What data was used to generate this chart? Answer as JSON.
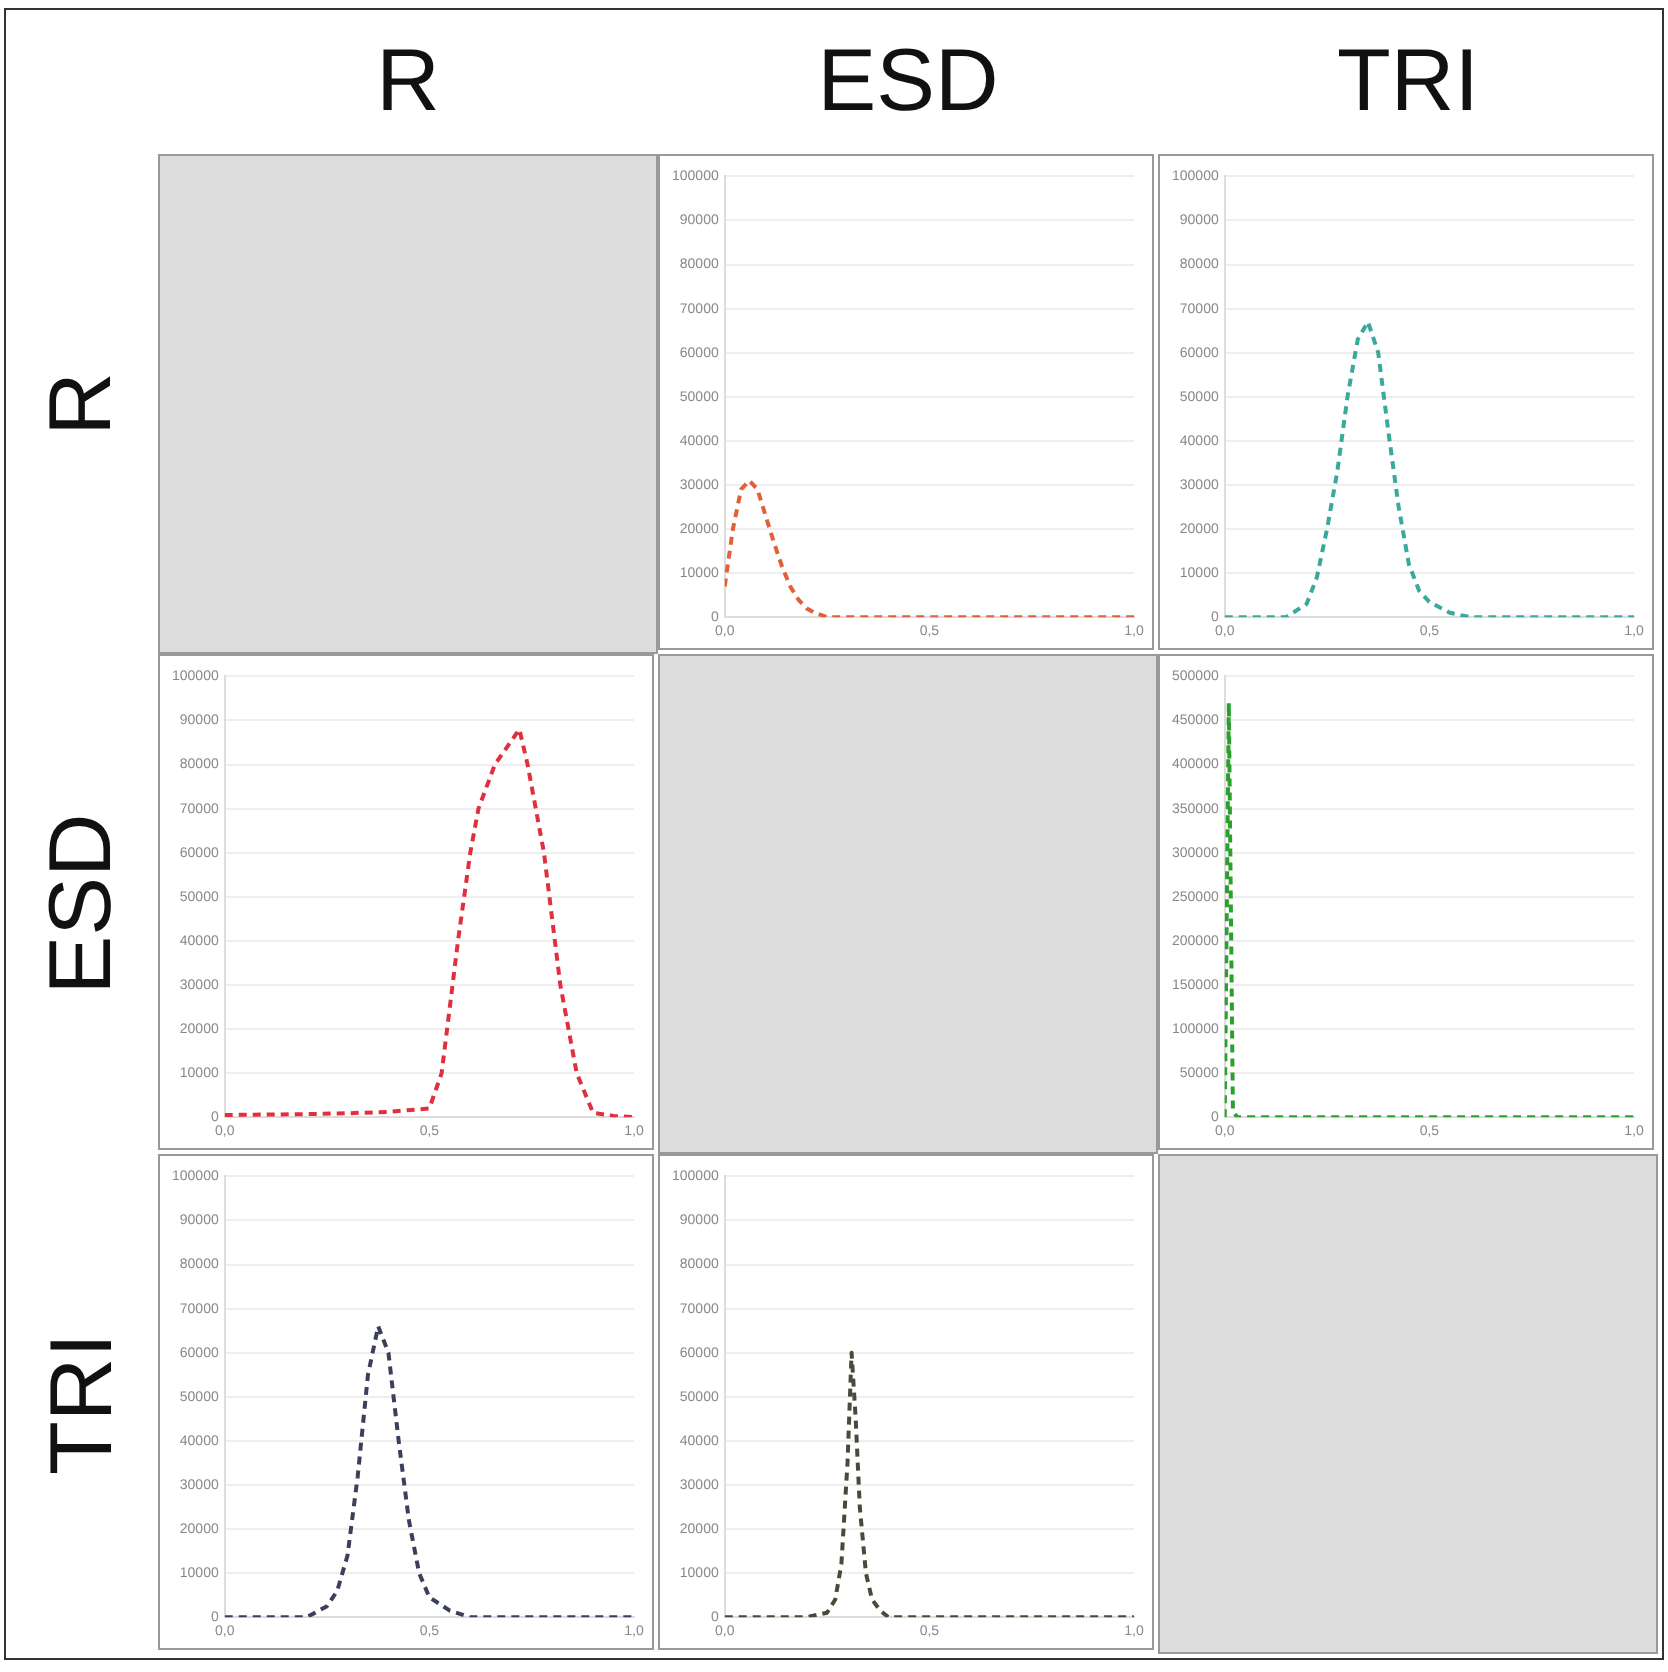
{
  "chart_data": [
    {
      "type": "line",
      "x": [
        0,
        0.02,
        0.04,
        0.06,
        0.08,
        0.1,
        0.12,
        0.14,
        0.16,
        0.18,
        0.2,
        0.22,
        0.25,
        0.3,
        0.4,
        0.5,
        0.6,
        0.7,
        0.8,
        0.9,
        1.0
      ],
      "series": [
        {
          "color": "#e0603a",
          "values": [
            7000,
            20000,
            29000,
            31000,
            29000,
            23000,
            17000,
            11500,
            7000,
            4000,
            2000,
            1000,
            0,
            0,
            0,
            0,
            0,
            0,
            0,
            0,
            0
          ]
        }
      ],
      "xlim": [
        0,
        1
      ],
      "ylim": [
        0,
        100000
      ],
      "xticks": [
        {
          "value": 0,
          "label": "0,0"
        },
        {
          "value": 0.5,
          "label": "0,5"
        },
        {
          "value": 1,
          "label": "1,0"
        }
      ],
      "yticks": [
        0,
        10000,
        20000,
        30000,
        40000,
        50000,
        60000,
        70000,
        80000,
        90000,
        100000
      ],
      "grid": "y",
      "marker": "none",
      "line_style": "dashed"
    },
    {
      "type": "line",
      "x": [
        0,
        0.1,
        0.15,
        0.2,
        0.225,
        0.25,
        0.275,
        0.3,
        0.325,
        0.35,
        0.375,
        0.4,
        0.425,
        0.45,
        0.475,
        0.5,
        0.55,
        0.6,
        0.7,
        0.8,
        0.9,
        1.0
      ],
      "series": [
        {
          "color": "#3aa89a",
          "values": [
            0,
            0,
            0,
            3000,
            9000,
            20000,
            33000,
            50000,
            63000,
            67000,
            60000,
            42000,
            25000,
            12000,
            6000,
            3500,
            1000,
            0,
            0,
            0,
            0,
            0
          ]
        }
      ],
      "xlim": [
        0,
        1
      ],
      "ylim": [
        0,
        100000
      ],
      "xticks": [
        {
          "value": 0,
          "label": "0,0"
        },
        {
          "value": 0.5,
          "label": "0,5"
        },
        {
          "value": 1,
          "label": "1,0"
        }
      ],
      "yticks": [
        0,
        10000,
        20000,
        30000,
        40000,
        50000,
        60000,
        70000,
        80000,
        90000,
        100000
      ],
      "grid": "y",
      "marker": "none",
      "line_style": "dashed"
    },
    {
      "type": "line",
      "x": [
        0,
        0.1,
        0.2,
        0.3,
        0.4,
        0.5,
        0.53,
        0.57,
        0.6,
        0.62,
        0.66,
        0.72,
        0.74,
        0.78,
        0.82,
        0.86,
        0.9,
        0.95,
        1.0
      ],
      "series": [
        {
          "color": "#e03040",
          "values": [
            500,
            600,
            700,
            900,
            1200,
            2000,
            10000,
            40000,
            60000,
            70000,
            80000,
            88000,
            80000,
            60000,
            30000,
            10000,
            1000,
            300,
            0
          ]
        }
      ],
      "xlim": [
        0,
        1
      ],
      "ylim": [
        0,
        100000
      ],
      "xticks": [
        {
          "value": 0,
          "label": "0,0"
        },
        {
          "value": 0.5,
          "label": "0,5"
        },
        {
          "value": 1,
          "label": "1,0"
        }
      ],
      "yticks": [
        0,
        10000,
        20000,
        30000,
        40000,
        50000,
        60000,
        70000,
        80000,
        90000,
        100000
      ],
      "grid": "y",
      "marker": "none",
      "line_style": "dashed"
    },
    {
      "type": "line",
      "x": [
        0,
        0.01,
        0.02,
        0.03,
        0.05,
        0.1,
        0.2,
        0.3,
        0.4,
        0.5,
        0.6,
        0.7,
        0.8,
        0.9,
        1.0
      ],
      "series": [
        {
          "color": "#2ca02c",
          "values": [
            0,
            470000,
            8000,
            0,
            0,
            0,
            0,
            0,
            0,
            0,
            0,
            0,
            0,
            0,
            0
          ]
        }
      ],
      "xlim": [
        0,
        1
      ],
      "ylim": [
        0,
        500000
      ],
      "xticks": [
        {
          "value": 0,
          "label": "0,0"
        },
        {
          "value": 0.5,
          "label": "0,5"
        },
        {
          "value": 1,
          "label": "1,0"
        }
      ],
      "yticks": [
        0,
        50000,
        100000,
        150000,
        200000,
        250000,
        300000,
        350000,
        400000,
        450000,
        500000
      ],
      "grid": "y",
      "marker": "none",
      "line_style": "dashed"
    },
    {
      "type": "line",
      "x": [
        0,
        0.1,
        0.2,
        0.25,
        0.275,
        0.3,
        0.325,
        0.35,
        0.375,
        0.4,
        0.425,
        0.45,
        0.475,
        0.5,
        0.55,
        0.6,
        0.7,
        0.8,
        0.9,
        1.0
      ],
      "series": [
        {
          "color": "#3a3f5c",
          "values": [
            0,
            0,
            0,
            2500,
            6000,
            14000,
            32000,
            55000,
            66000,
            60000,
            40000,
            22000,
            10000,
            4500,
            1500,
            0,
            0,
            0,
            0,
            0
          ]
        }
      ],
      "xlim": [
        0,
        1
      ],
      "ylim": [
        0,
        100000
      ],
      "xticks": [
        {
          "value": 0,
          "label": "0,0"
        },
        {
          "value": 0.5,
          "label": "0,5"
        },
        {
          "value": 1,
          "label": "1,0"
        }
      ],
      "yticks": [
        0,
        10000,
        20000,
        30000,
        40000,
        50000,
        60000,
        70000,
        80000,
        90000,
        100000
      ],
      "grid": "y",
      "marker": "none",
      "line_style": "dashed"
    },
    {
      "type": "line",
      "x": [
        0,
        0.1,
        0.2,
        0.25,
        0.27,
        0.285,
        0.3,
        0.31,
        0.32,
        0.33,
        0.345,
        0.36,
        0.38,
        0.4,
        0.5,
        0.6,
        0.7,
        0.8,
        0.9,
        1.0
      ],
      "series": [
        {
          "color": "#4a4a3a",
          "values": [
            0,
            0,
            0,
            1000,
            4000,
            12000,
            35000,
            60000,
            45000,
            25000,
            10000,
            4000,
            1500,
            0,
            0,
            0,
            0,
            0,
            0,
            0
          ]
        }
      ],
      "xlim": [
        0,
        1
      ],
      "ylim": [
        0,
        100000
      ],
      "xticks": [
        {
          "value": 0,
          "label": "0,0"
        },
        {
          "value": 0.5,
          "label": "0,5"
        },
        {
          "value": 1,
          "label": "1,0"
        }
      ],
      "yticks": [
        0,
        10000,
        20000,
        30000,
        40000,
        50000,
        60000,
        70000,
        80000,
        90000,
        100000
      ],
      "grid": "y",
      "marker": "none",
      "line_style": "dashed"
    },
    {
      "type": "other",
      "annotations": [
        "R",
        "ESD",
        "TRI",
        "R",
        "ESD",
        "TRI"
      ]
    }
  ]
}
